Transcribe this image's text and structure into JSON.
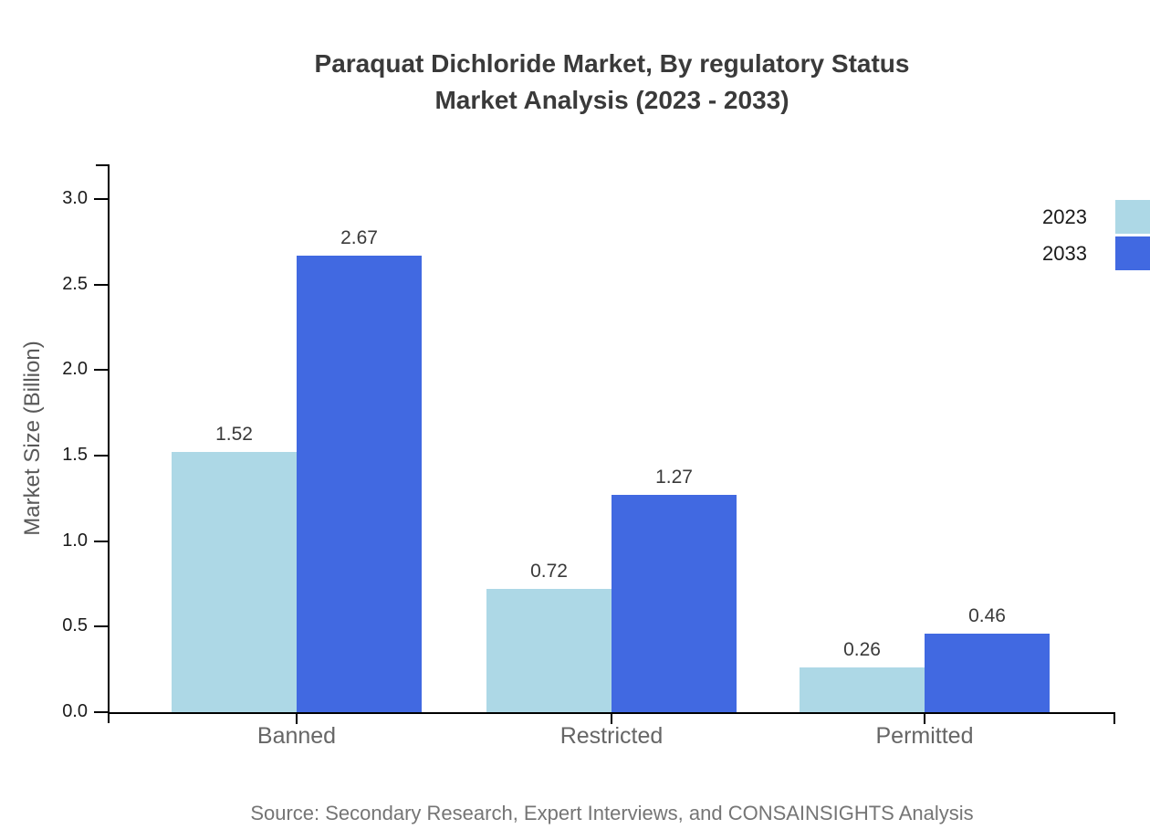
{
  "title": {
    "line1": "Paraquat Dichloride Market, By regulatory Status",
    "line2": "Market Analysis (2023 - 2033)"
  },
  "source": "Source: Secondary Research, Expert Interviews, and CONSAINSIGHTS Analysis",
  "colors": {
    "series_2023": "#ADD8E6",
    "series_2033": "#4169E1",
    "axis": "#000000",
    "tick_label": "#1a1a1a",
    "category_label": "#666666",
    "axis_label": "#595959",
    "value_label": "#3a3a3a",
    "title": "#3a3a3a",
    "source": "#757575",
    "background": "#ffffff"
  },
  "chart_data": {
    "type": "bar",
    "title": "Paraquat Dichloride Market, By regulatory Status Market Analysis (2023 - 2033)",
    "categories": [
      "Banned",
      "Restricted",
      "Permitted"
    ],
    "series": [
      {
        "name": "2023",
        "color": "#ADD8E6",
        "values": [
          1.52,
          0.72,
          0.26
        ]
      },
      {
        "name": "2033",
        "color": "#4169E1",
        "values": [
          2.67,
          1.27,
          0.46
        ]
      }
    ],
    "xlabel": "",
    "ylabel": "Market Size (Billion)",
    "ylim": [
      0.0,
      3.2
    ],
    "yticks": [
      0.0,
      0.5,
      1.0,
      1.5,
      2.0,
      2.5,
      3.0
    ],
    "value_labels_shown": true,
    "grid": false,
    "legend_position": "right"
  }
}
